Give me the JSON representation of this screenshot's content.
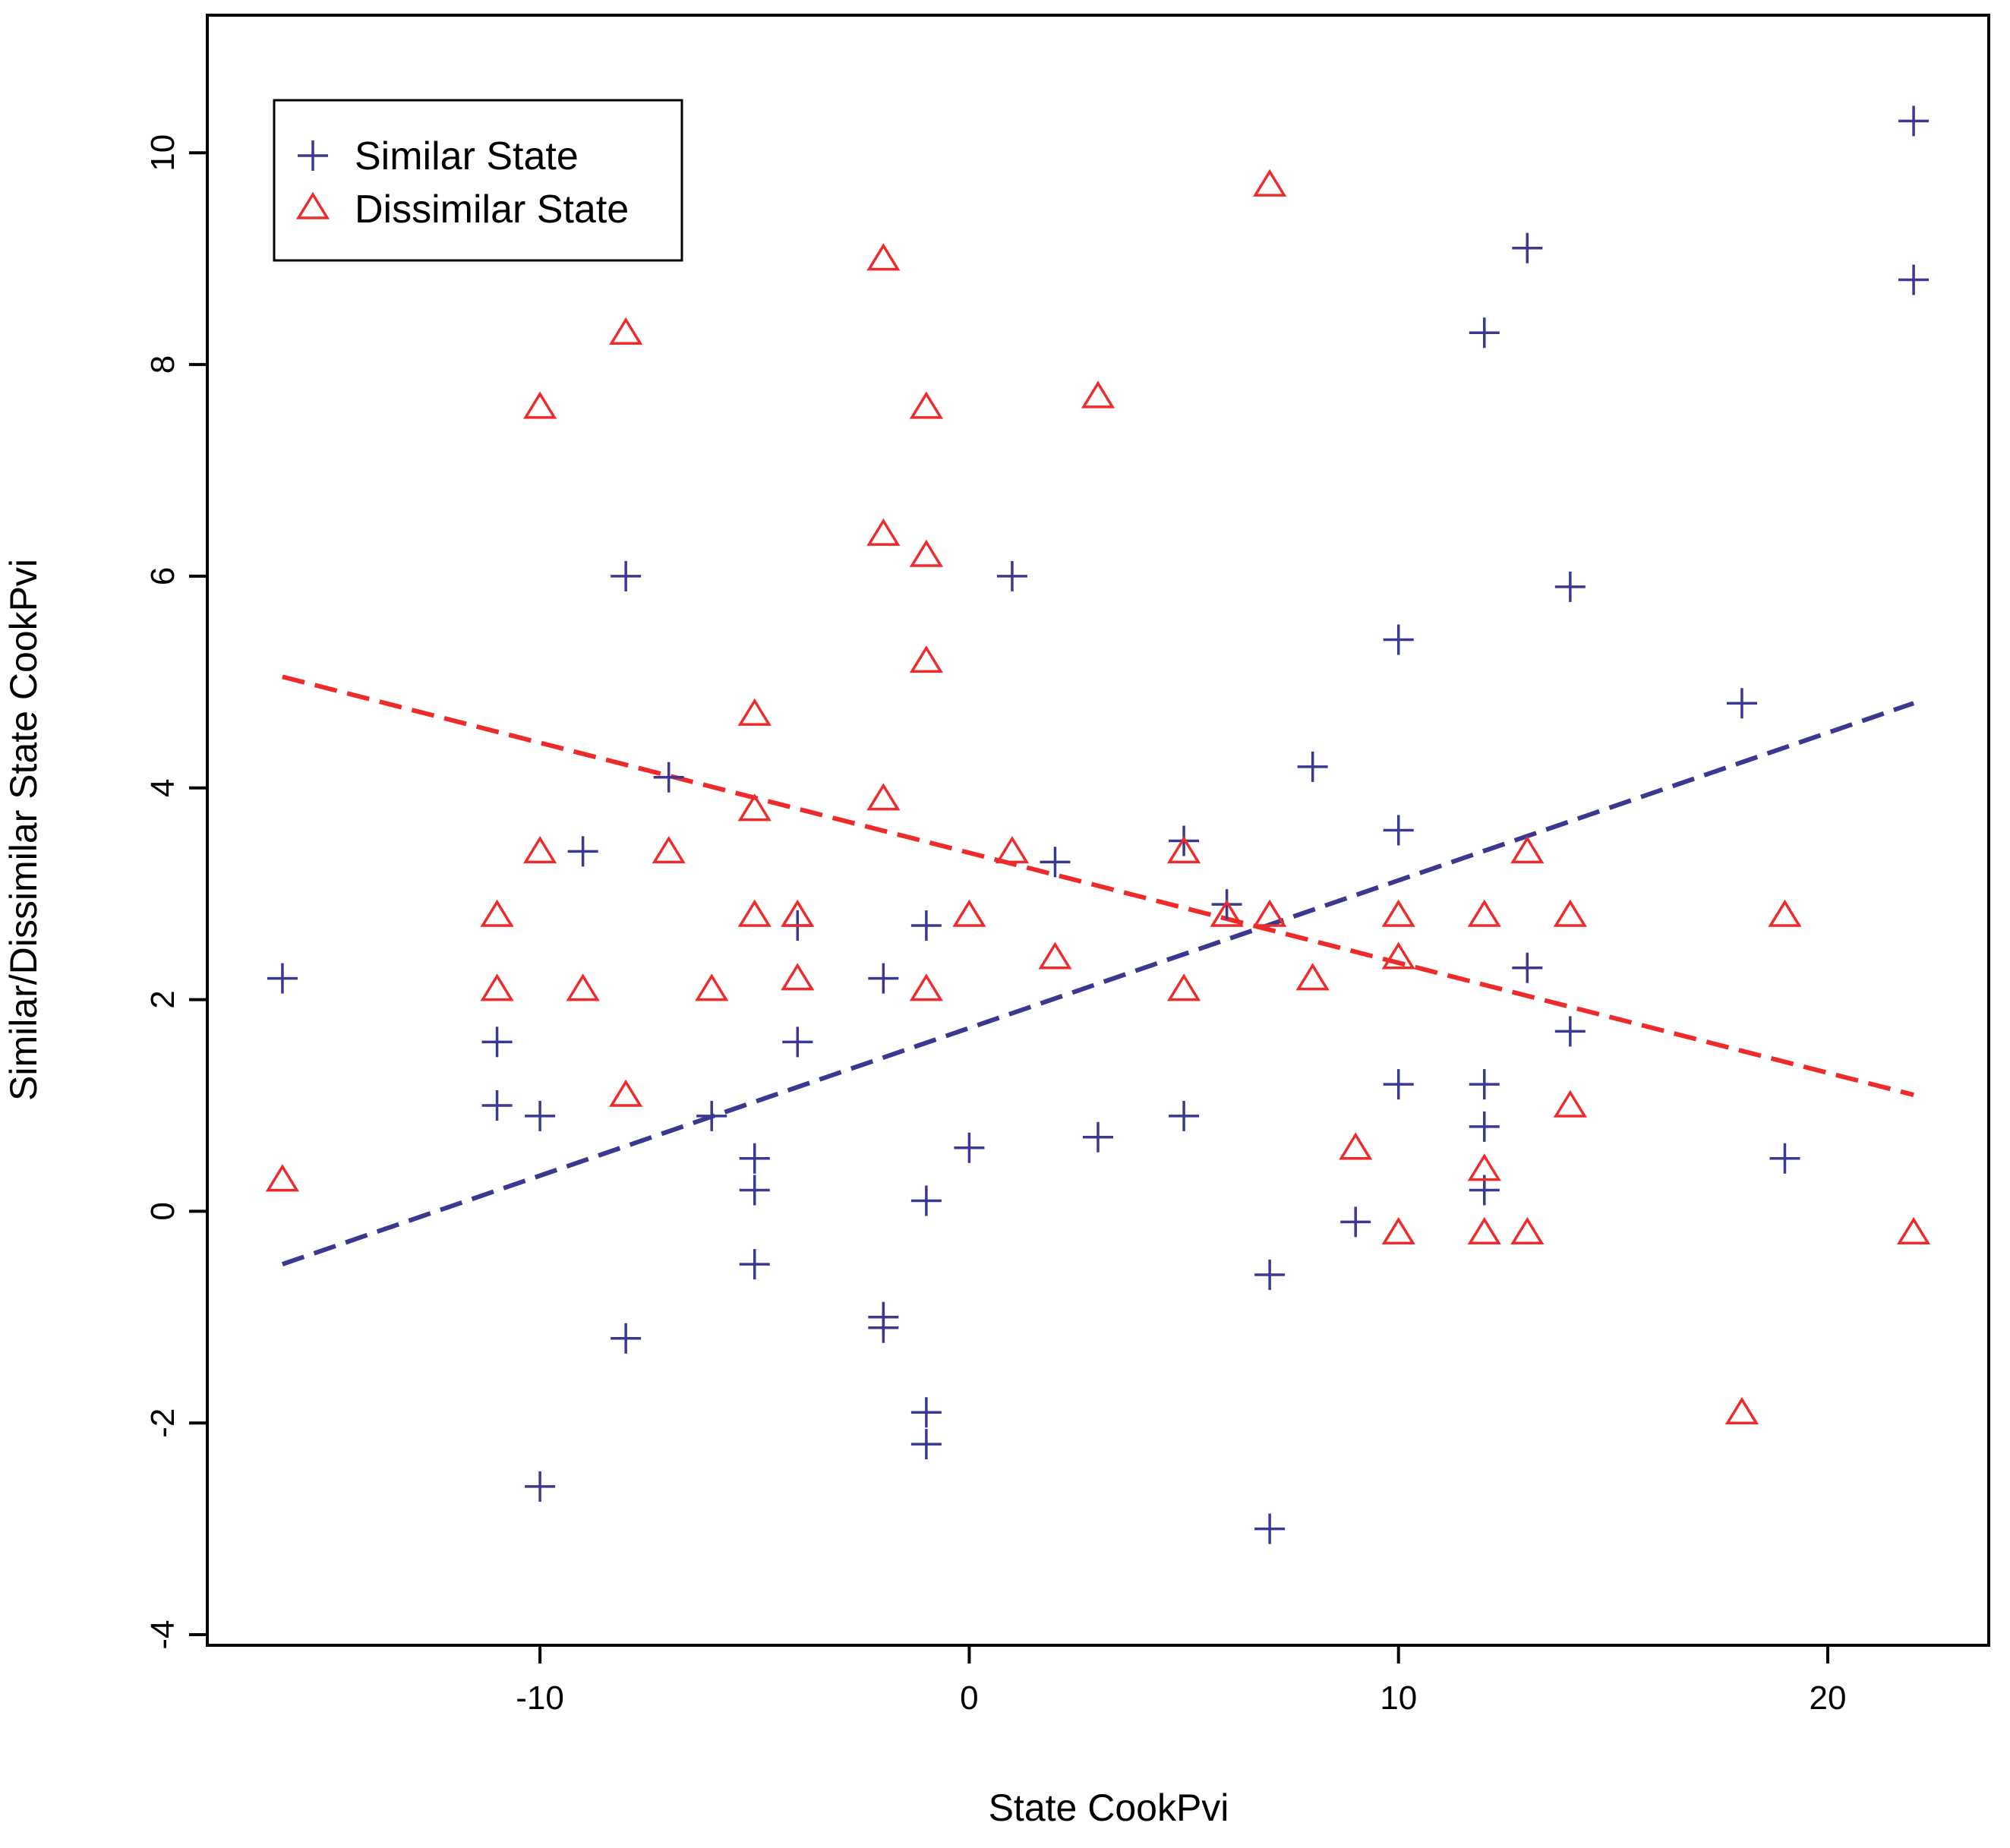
{
  "chart_data": {
    "type": "scatter",
    "title": "",
    "xlabel": "State CookPvi",
    "ylabel": "Similar/Dissimilar State CookPvi",
    "xlim": [
      -17.75,
      23.75
    ],
    "ylim": [
      -4.1,
      11.3
    ],
    "x_ticks": [
      -10,
      0,
      10,
      20
    ],
    "x_tick_labels": [
      "-10",
      "0",
      "10",
      "20"
    ],
    "y_ticks": [
      -4,
      -2,
      0,
      2,
      4,
      6,
      8,
      10
    ],
    "y_tick_labels": [
      "-4",
      "-2",
      "0",
      "2",
      "4",
      "6",
      "8",
      "10"
    ],
    "grid": false,
    "legend": {
      "position": "top-left",
      "entries": [
        {
          "label": "Similar State",
          "marker": "plus",
          "color": "#3b3891"
        },
        {
          "label": "Dissimilar State",
          "marker": "triangle",
          "color": "#ee2a2a"
        }
      ]
    },
    "series": [
      {
        "name": "Similar State",
        "marker": "plus",
        "color": "#3b3891",
        "points": [
          [
            -16,
            2.2
          ],
          [
            -11,
            1.6
          ],
          [
            -11,
            1.0
          ],
          [
            -10,
            0.9
          ],
          [
            -10,
            -2.6
          ],
          [
            -9,
            3.4
          ],
          [
            -8,
            6.0
          ],
          [
            -8,
            -1.2
          ],
          [
            -7,
            4.1
          ],
          [
            -6,
            0.9
          ],
          [
            -5,
            0.5
          ],
          [
            -5,
            0.2
          ],
          [
            -5,
            -0.5
          ],
          [
            -4,
            2.7
          ],
          [
            -4,
            1.6
          ],
          [
            -2,
            2.2
          ],
          [
            -2,
            -1.0
          ],
          [
            -2,
            -1.1
          ],
          [
            -1,
            2.7
          ],
          [
            -1,
            0.1
          ],
          [
            -1,
            -1.9
          ],
          [
            -1,
            -2.2
          ],
          [
            0,
            0.6
          ],
          [
            1,
            6.0
          ],
          [
            2,
            3.3
          ],
          [
            3,
            0.7
          ],
          [
            5,
            3.5
          ],
          [
            5,
            0.9
          ],
          [
            6,
            2.9
          ],
          [
            7,
            -0.6
          ],
          [
            7,
            -3.0
          ],
          [
            8,
            4.2
          ],
          [
            9,
            -0.1
          ],
          [
            10,
            5.4
          ],
          [
            10,
            3.6
          ],
          [
            10,
            1.2
          ],
          [
            12,
            8.3
          ],
          [
            12,
            1.2
          ],
          [
            12,
            0.8
          ],
          [
            12,
            0.2
          ],
          [
            13,
            9.1
          ],
          [
            13,
            2.3
          ],
          [
            14,
            5.9
          ],
          [
            14,
            1.7
          ],
          [
            18,
            4.8
          ],
          [
            19,
            0.5
          ],
          [
            22,
            10.3
          ],
          [
            22,
            8.8
          ]
        ]
      },
      {
        "name": "Dissimilar State",
        "marker": "triangle",
        "color": "#ee2a2a",
        "points": [
          [
            -16,
            0.3
          ],
          [
            -11,
            2.8
          ],
          [
            -11,
            2.1
          ],
          [
            -10,
            7.6
          ],
          [
            -10,
            3.4
          ],
          [
            -9,
            2.1
          ],
          [
            -8,
            8.3
          ],
          [
            -8,
            1.1
          ],
          [
            -7,
            3.4
          ],
          [
            -6,
            2.1
          ],
          [
            -5,
            4.7
          ],
          [
            -5,
            3.8
          ],
          [
            -5,
            2.8
          ],
          [
            -4,
            2.8
          ],
          [
            -4,
            2.2
          ],
          [
            -2,
            9.0
          ],
          [
            -2,
            6.4
          ],
          [
            -2,
            3.9
          ],
          [
            -1,
            7.6
          ],
          [
            -1,
            6.2
          ],
          [
            -1,
            5.2
          ],
          [
            -1,
            2.1
          ],
          [
            0,
            2.8
          ],
          [
            1,
            3.4
          ],
          [
            2,
            2.4
          ],
          [
            3,
            7.7
          ],
          [
            5,
            3.4
          ],
          [
            5,
            2.1
          ],
          [
            6,
            2.8
          ],
          [
            7,
            9.7
          ],
          [
            7,
            2.8
          ],
          [
            8,
            2.2
          ],
          [
            9,
            0.6
          ],
          [
            10,
            2.8
          ],
          [
            10,
            2.4
          ],
          [
            10,
            -0.2
          ],
          [
            12,
            2.8
          ],
          [
            12,
            0.4
          ],
          [
            12,
            -0.2
          ],
          [
            13,
            3.4
          ],
          [
            13,
            -0.2
          ],
          [
            14,
            2.8
          ],
          [
            14,
            1.0
          ],
          [
            18,
            -1.9
          ],
          [
            19,
            2.8
          ],
          [
            22,
            -0.2
          ]
        ]
      }
    ],
    "fit_lines": [
      {
        "name": "Similar State fit",
        "color": "#3b3891",
        "style": "dashed",
        "x": [
          -16,
          22
        ],
        "y": [
          -0.5,
          4.8
        ]
      },
      {
        "name": "Dissimilar State fit",
        "color": "#ee2a2a",
        "style": "dashed",
        "x": [
          -16,
          22
        ],
        "y": [
          5.05,
          1.1
        ]
      }
    ]
  }
}
